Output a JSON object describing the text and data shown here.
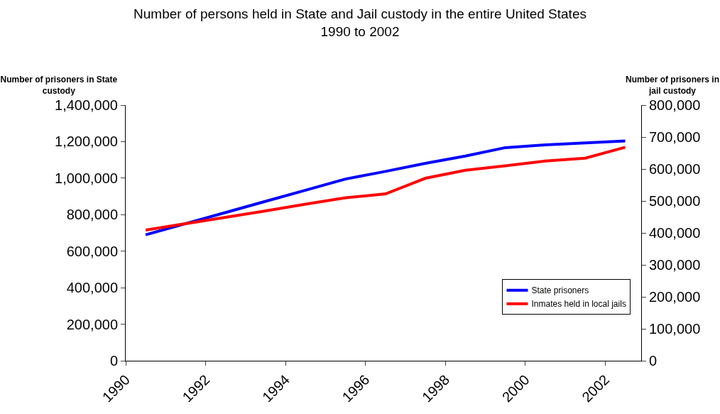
{
  "chart_data": {
    "type": "line",
    "title": "Number of persons held in State and Jail custody in the entire United States\n1990 to 2002",
    "ylabel": "Number of prisoners in State custody",
    "y2label": "Number of prisoners in jail custody",
    "x": [
      1990.5,
      1991.5,
      1992.5,
      1993.5,
      1994.5,
      1995.5,
      1996.5,
      1997.5,
      1998.5,
      1999.5,
      2000.5,
      2001.5,
      2002.5
    ],
    "xlim": [
      1990,
      2002.9
    ],
    "xticks": [
      1990,
      1992,
      1994,
      1996,
      1998,
      2000,
      2002
    ],
    "ylim": [
      0,
      1400000
    ],
    "yticks": [
      {
        "value": 0,
        "label": "0"
      },
      {
        "value": 200000,
        "label": "200,000"
      },
      {
        "value": 400000,
        "label": "400,000"
      },
      {
        "value": 600000,
        "label": "600,000"
      },
      {
        "value": 800000,
        "label": "800,000"
      },
      {
        "value": 1000000,
        "label": "1,000,000"
      },
      {
        "value": 1200000,
        "label": "1,200,000"
      },
      {
        "value": 1400000,
        "label": "1,400,000"
      }
    ],
    "y2lim": [
      0,
      800000
    ],
    "y2ticks": [
      {
        "value": 0,
        "label": "0"
      },
      {
        "value": 100000,
        "label": "100,000"
      },
      {
        "value": 200000,
        "label": "200,000"
      },
      {
        "value": 300000,
        "label": "300,000"
      },
      {
        "value": 400000,
        "label": "400,000"
      },
      {
        "value": 500000,
        "label": "500,000"
      },
      {
        "value": 600000,
        "label": "600,000"
      },
      {
        "value": 700000,
        "label": "700,000"
      },
      {
        "value": 800000,
        "label": "800,000"
      }
    ],
    "series": [
      {
        "name": "State prisoners",
        "color": "#0000ff",
        "values": [
          690000,
          751000,
          812000,
          873000,
          934000,
          995000,
          1037000,
          1081000,
          1121000,
          1167000,
          1182000,
          1193000,
          1204000
        ]
      },
      {
        "name": "Inmates held in local jails",
        "color": "#ff0000",
        "axis": "y2",
        "values": [
          409000,
          429000,
          449000,
          469000,
          490000,
          510000,
          522000,
          571000,
          596000,
          610000,
          625000,
          634000,
          668000
        ]
      }
    ],
    "grid": false,
    "legend": "bottom right",
    "marker": "none",
    "line_style": "solid"
  }
}
